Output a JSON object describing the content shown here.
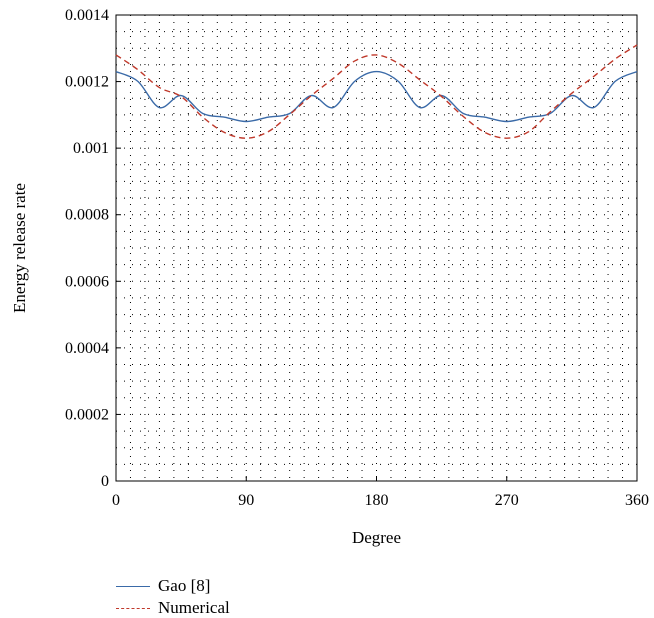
{
  "chart_data": {
    "type": "line",
    "xlabel": "Degree",
    "ylabel": "Energy release rate",
    "xlim": [
      0,
      360
    ],
    "ylim": [
      0,
      0.0014
    ],
    "xticks": [
      0,
      90,
      180,
      270,
      360
    ],
    "yticks": [
      0,
      0.0002,
      0.0004,
      0.0006,
      0.0008,
      0.001,
      0.0012,
      0.0014
    ],
    "xtick_labels": [
      "0",
      "90",
      "180",
      "270",
      "360"
    ],
    "ytick_labels": [
      "0",
      "0.0002",
      "0.0004",
      "0.0006",
      "0.0008",
      "0.001",
      "0.0012",
      "0.0014"
    ],
    "grid": true,
    "grid_style": "dotted",
    "legend_position": "bottom-left",
    "series": [
      {
        "name": "Gao [8]",
        "color": "#3a6aa8",
        "style": "solid",
        "x": [
          0,
          15,
          30,
          45,
          60,
          75,
          90,
          105,
          120,
          135,
          150,
          165,
          180,
          195,
          210,
          225,
          240,
          255,
          270,
          285,
          300,
          315,
          330,
          345,
          360
        ],
        "y": [
          0.00123,
          0.001201,
          0.001122,
          0.001158,
          0.001104,
          0.001093,
          0.00108,
          0.001093,
          0.001104,
          0.001158,
          0.001122,
          0.001201,
          0.00123,
          0.001201,
          0.001122,
          0.001158,
          0.001104,
          0.001093,
          0.00108,
          0.001093,
          0.001104,
          0.001158,
          0.001122,
          0.001201,
          0.00123
        ]
      },
      {
        "name": "Numerical",
        "color": "#c0392b",
        "style": "dashed",
        "x": [
          0,
          15,
          30,
          45,
          60,
          75,
          90,
          105,
          120,
          135,
          150,
          165,
          180,
          195,
          210,
          225,
          240,
          255,
          270,
          285,
          300,
          315,
          330,
          345,
          360
        ],
        "y": [
          0.00128,
          0.001236,
          0.001182,
          0.001155,
          0.001093,
          0.001047,
          0.00103,
          0.001049,
          0.001101,
          0.001158,
          0.001209,
          0.001262,
          0.00128,
          0.001255,
          0.001205,
          0.001155,
          0.001095,
          0.001047,
          0.00103,
          0.001049,
          0.001109,
          0.001165,
          0.001215,
          0.001268,
          0.00131
        ]
      }
    ]
  }
}
